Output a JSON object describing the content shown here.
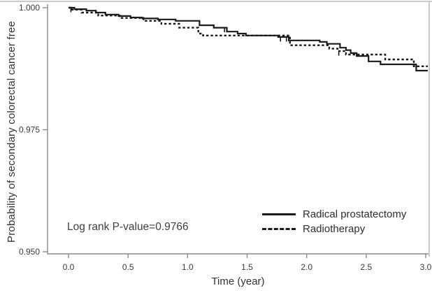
{
  "figure": {
    "background": "#ffffff",
    "border_color": "#cacaca"
  },
  "chart_data": {
    "type": "line",
    "variant": "kaplan_meier_step",
    "title": "",
    "xlabel": "Time (year)",
    "ylabel": "Probability of secondary colorectal cancer free",
    "xlim": [
      0.0,
      3.0
    ],
    "ylim": [
      0.95,
      1.0
    ],
    "xticks": [
      0.0,
      0.5,
      1.0,
      1.5,
      2.0,
      2.5,
      3.0
    ],
    "xtick_labels": [
      "0.0",
      "0.5",
      "1.0",
      "1.5",
      "2.0",
      "2.5",
      "3.0"
    ],
    "yticks": [
      1.0,
      0.975,
      0.95
    ],
    "ytick_labels": [
      "1.000",
      "0.975",
      "0.950"
    ],
    "grid": false,
    "legend_position": "inside-bottom-right",
    "annotation": {
      "text": "Log rank P-value=0.9766"
    },
    "line_color": "#1a1a1a",
    "axis_color": "#8a8a8a",
    "tick_label_color": "#3a3a3a",
    "series": [
      {
        "name": "Radical prostatectomy",
        "line_style": "solid",
        "points": [
          [
            0.0,
            1.0
          ],
          [
            0.05,
            0.9997
          ],
          [
            0.15,
            0.9994
          ],
          [
            0.23,
            0.999
          ],
          [
            0.31,
            0.9986
          ],
          [
            0.42,
            0.9983
          ],
          [
            0.52,
            0.998
          ],
          [
            0.62,
            0.9978
          ],
          [
            0.75,
            0.9976
          ],
          [
            0.9,
            0.9973
          ],
          [
            1.1,
            0.9964
          ],
          [
            1.22,
            0.9959
          ],
          [
            1.33,
            0.9951
          ],
          [
            1.42,
            0.9947
          ],
          [
            1.49,
            0.9943
          ],
          [
            1.76,
            0.994
          ],
          [
            1.85,
            0.9933
          ],
          [
            2.11,
            0.993
          ],
          [
            2.17,
            0.9926
          ],
          [
            2.28,
            0.9918
          ],
          [
            2.33,
            0.9913
          ],
          [
            2.37,
            0.9907
          ],
          [
            2.42,
            0.9901
          ],
          [
            2.52,
            0.989
          ],
          [
            2.62,
            0.9884
          ],
          [
            2.92,
            0.9871
          ],
          [
            3.0,
            0.9871
          ]
        ],
        "censor_times": [
          0.02,
          1.31,
          1.78,
          1.83
        ]
      },
      {
        "name": "Radiotherapy",
        "line_style": "dashed",
        "points": [
          [
            0.0,
            1.0
          ],
          [
            0.03,
            0.9996
          ],
          [
            0.11,
            0.999
          ],
          [
            0.25,
            0.9984
          ],
          [
            0.43,
            0.9979
          ],
          [
            0.63,
            0.9973
          ],
          [
            0.78,
            0.9967
          ],
          [
            0.93,
            0.9959
          ],
          [
            1.09,
            0.9947
          ],
          [
            1.13,
            0.9943
          ],
          [
            1.86,
            0.9923
          ],
          [
            2.19,
            0.9916
          ],
          [
            2.26,
            0.9911
          ],
          [
            2.33,
            0.9904
          ],
          [
            2.66,
            0.9894
          ],
          [
            2.9,
            0.988
          ],
          [
            3.0,
            0.988
          ]
        ],
        "censor_times": [
          2.27
        ]
      }
    ]
  }
}
